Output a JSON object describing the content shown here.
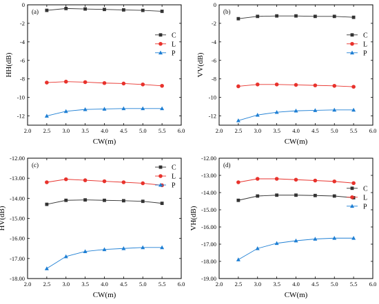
{
  "chart_data": [
    {
      "type": "line",
      "panel_label": "(a)",
      "xlabel": "CW(m)",
      "ylabel": "HH(dB)",
      "xlim": [
        2.0,
        6.0
      ],
      "ylim": [
        -13,
        0
      ],
      "xticks": [
        2.0,
        2.5,
        3.0,
        3.5,
        4.0,
        4.5,
        5.0,
        5.5,
        6.0
      ],
      "yticks": [
        -12,
        -10,
        -8,
        -6,
        -4,
        -2,
        0
      ],
      "tick_format": "int",
      "legend_position": "right-center",
      "x": [
        2.5,
        3.0,
        3.5,
        4.0,
        4.5,
        5.0,
        5.5
      ],
      "series": [
        {
          "name": "C",
          "marker": "square",
          "color": "#333333",
          "values": [
            -0.6,
            -0.4,
            -0.45,
            -0.5,
            -0.55,
            -0.6,
            -0.7
          ]
        },
        {
          "name": "L",
          "marker": "circle",
          "color": "#e8322c",
          "values": [
            -8.4,
            -8.3,
            -8.35,
            -8.45,
            -8.5,
            -8.6,
            -8.75
          ]
        },
        {
          "name": "P",
          "marker": "triangle",
          "color": "#1e7fd4",
          "values": [
            -12.0,
            -11.5,
            -11.3,
            -11.25,
            -11.2,
            -11.2,
            -11.2
          ]
        }
      ]
    },
    {
      "type": "line",
      "panel_label": "(b)",
      "xlabel": "CW(m)",
      "ylabel": "VV(dB)",
      "xlim": [
        2.0,
        6.0
      ],
      "ylim": [
        -13,
        0
      ],
      "xticks": [
        2.0,
        2.5,
        3.0,
        3.5,
        4.0,
        4.5,
        5.0,
        5.5,
        6.0
      ],
      "yticks": [
        -12,
        -10,
        -8,
        -6,
        -4,
        -2,
        0
      ],
      "tick_format": "int",
      "legend_position": "right-center",
      "x": [
        2.5,
        3.0,
        3.5,
        4.0,
        4.5,
        5.0,
        5.5
      ],
      "series": [
        {
          "name": "C",
          "marker": "square",
          "color": "#333333",
          "values": [
            -1.5,
            -1.25,
            -1.2,
            -1.2,
            -1.25,
            -1.25,
            -1.35
          ]
        },
        {
          "name": "L",
          "marker": "circle",
          "color": "#e8322c",
          "values": [
            -8.8,
            -8.6,
            -8.6,
            -8.65,
            -8.7,
            -8.75,
            -8.85
          ]
        },
        {
          "name": "P",
          "marker": "triangle",
          "color": "#1e7fd4",
          "values": [
            -12.5,
            -11.9,
            -11.6,
            -11.45,
            -11.4,
            -11.35,
            -11.35
          ]
        }
      ]
    },
    {
      "type": "line",
      "panel_label": "(c)",
      "xlabel": "CW(m)",
      "ylabel": "HV(dB)",
      "xlim": [
        2.0,
        6.0
      ],
      "ylim": [
        -18,
        -12
      ],
      "xticks": [
        2.0,
        2.5,
        3.0,
        3.5,
        4.0,
        4.5,
        5.0,
        5.5,
        6.0
      ],
      "yticks": [
        -18,
        -17,
        -16,
        -15,
        -14,
        -13,
        -12
      ],
      "tick_format": "2dp",
      "legend_position": "top-right",
      "x": [
        2.5,
        3.0,
        3.5,
        4.0,
        4.5,
        5.0,
        5.5
      ],
      "series": [
        {
          "name": "C",
          "marker": "square",
          "color": "#333333",
          "values": [
            -14.3,
            -14.1,
            -14.08,
            -14.1,
            -14.12,
            -14.15,
            -14.25
          ]
        },
        {
          "name": "L",
          "marker": "circle",
          "color": "#e8322c",
          "values": [
            -13.2,
            -13.05,
            -13.1,
            -13.15,
            -13.2,
            -13.25,
            -13.35
          ]
        },
        {
          "name": "P",
          "marker": "triangle",
          "color": "#1e7fd4",
          "values": [
            -17.5,
            -16.9,
            -16.65,
            -16.55,
            -16.5,
            -16.45,
            -16.45
          ]
        }
      ]
    },
    {
      "type": "line",
      "panel_label": "(d)",
      "xlabel": "CW(m)",
      "ylabel": "VH(dB)",
      "xlim": [
        2.0,
        6.0
      ],
      "ylim": [
        -19,
        -12
      ],
      "xticks": [
        2.0,
        2.5,
        3.0,
        3.5,
        4.0,
        4.5,
        5.0,
        5.5,
        6.0
      ],
      "yticks": [
        -19,
        -18,
        -17,
        -16,
        -15,
        -14,
        -13,
        -12
      ],
      "tick_format": "2dp",
      "legend_position": "right-center",
      "x": [
        2.5,
        3.0,
        3.5,
        4.0,
        4.5,
        5.0,
        5.5
      ],
      "series": [
        {
          "name": "C",
          "marker": "square",
          "color": "#333333",
          "values": [
            -14.45,
            -14.2,
            -14.15,
            -14.15,
            -14.17,
            -14.2,
            -14.3
          ]
        },
        {
          "name": "L",
          "marker": "circle",
          "color": "#e8322c",
          "values": [
            -13.4,
            -13.2,
            -13.2,
            -13.25,
            -13.3,
            -13.35,
            -13.45
          ]
        },
        {
          "name": "P",
          "marker": "triangle",
          "color": "#1e7fd4",
          "values": [
            -17.9,
            -17.25,
            -16.95,
            -16.8,
            -16.7,
            -16.65,
            -16.65
          ]
        }
      ]
    }
  ]
}
